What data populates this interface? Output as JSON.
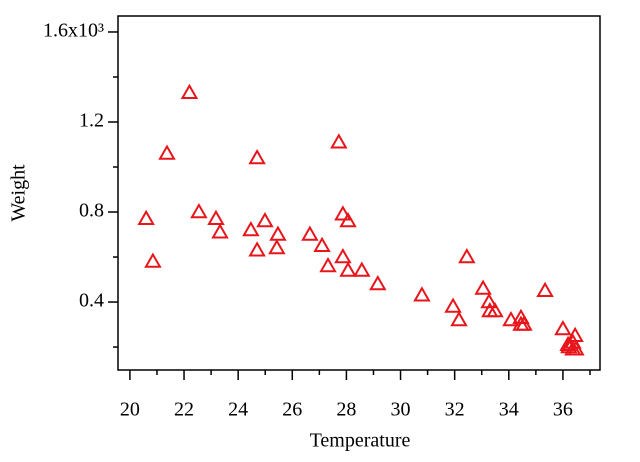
{
  "chart_data": {
    "type": "scatter",
    "x_label": "Temperature",
    "y_label": "Weight",
    "xlim": [
      19.56,
      37.37
    ],
    "ylim": [
      0.098,
      1.671
    ],
    "xticks": [
      20,
      22,
      24,
      26,
      28,
      30,
      32,
      34,
      36
    ],
    "xminorticks": [
      21,
      23,
      25,
      27,
      29,
      31,
      33,
      35,
      37
    ],
    "yticks": [
      0.4,
      0.8,
      1.2,
      {
        "value": 1.6,
        "label": "1.6x10³"
      }
    ],
    "yminorticks": [
      0.2,
      0.6,
      1.0,
      1.4
    ],
    "series": [
      {
        "color": "#e8151b",
        "x": [
          20.6,
          20.85,
          21.37,
          22.2,
          22.55,
          23.18,
          23.33,
          24.47,
          24.7,
          24.7,
          24.99,
          25.47,
          25.43,
          26.65,
          27.1,
          27.32,
          27.72,
          27.87,
          28.06,
          27.87,
          28.06,
          28.57,
          29.16,
          30.79,
          31.94,
          32.16,
          32.45,
          33.05,
          33.27,
          33.3,
          33.49,
          34.08,
          34.45,
          34.45,
          34.56,
          35.34,
          36.0,
          36.19,
          36.45,
          36.37,
          36.37,
          36.48,
          36.22
        ],
        "values": [
          0.77,
          0.58,
          1.06,
          1.33,
          0.8,
          0.77,
          0.71,
          0.72,
          1.04,
          0.63,
          0.76,
          0.7,
          0.64,
          0.7,
          0.65,
          0.56,
          1.11,
          0.79,
          0.76,
          0.6,
          0.54,
          0.54,
          0.48,
          0.43,
          0.38,
          0.32,
          0.6,
          0.46,
          0.4,
          0.36,
          0.36,
          0.32,
          0.33,
          0.3,
          0.3,
          0.45,
          0.28,
          0.21,
          0.25,
          0.22,
          0.19,
          0.19,
          0.2
        ]
      }
    ]
  }
}
